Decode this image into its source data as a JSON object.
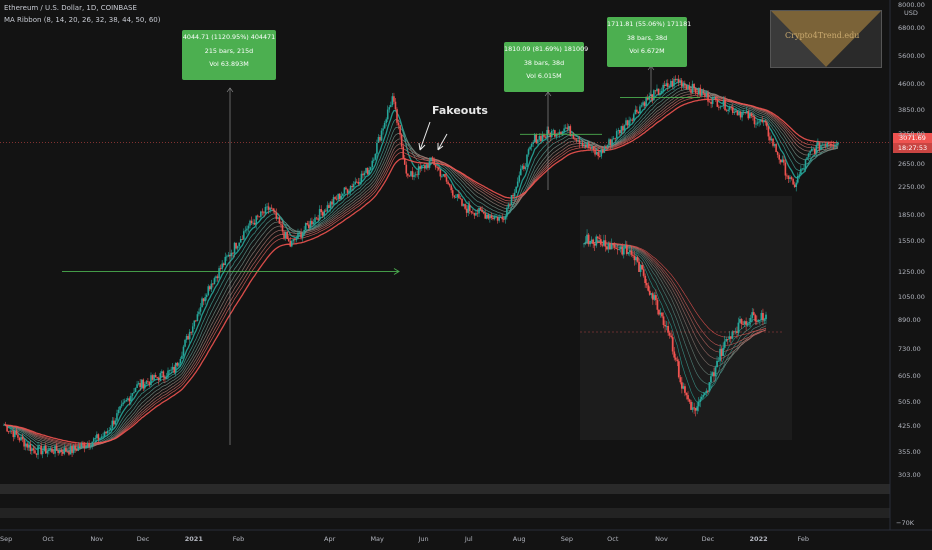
{
  "header": {
    "symbol_line": "Ethereum / U.S. Dollar, 1D, COINBASE",
    "indicator_line": "MA Ribbon (8, 14, 20, 26, 32, 38, 44, 50, 60)"
  },
  "currency": "USD",
  "logo": {
    "text": "Crypto4Trend.edu"
  },
  "annotation": {
    "fakeouts": "Fakeouts"
  },
  "measure_boxes": [
    {
      "line1": "4044.71 (1120.95%) 404471",
      "line2": "215 bars, 215d",
      "line3": "Vol 63.893M"
    },
    {
      "line1": "1810.09 (81.69%) 181009",
      "line2": "38 bars, 38d",
      "line3": "Vol 6.015M"
    },
    {
      "line1": "1711.81 (55.06%) 171181",
      "line2": "38 bars, 38d",
      "line3": "Vol 6.672M"
    }
  ],
  "current_price": {
    "value": "3071.69",
    "countdown": "18:27:53"
  },
  "colors": {
    "background": "#131313",
    "up": "#26a69a",
    "down": "#ef5350",
    "ribbon_fast": "#26a69a",
    "ribbon_slow": "#ef5350",
    "measure_box": "#4caf50",
    "price_line": "#ef5350"
  },
  "chart_data": {
    "type": "line",
    "series_kind": "candlestick with MA ribbon",
    "y_scale": "log",
    "y_ticks": [
      "8000.00",
      "6800.00",
      "5600.00",
      "4600.00",
      "3850.00",
      "3250.00",
      "2650.00",
      "2250.00",
      "1850.00",
      "1550.00",
      "1250.00",
      "1050.00",
      "890.00",
      "730.00",
      "605.00",
      "505.00",
      "425.00",
      "355.00",
      "303.00"
    ],
    "x_ticks": [
      "Sep",
      "Oct",
      "Nov",
      "Dec",
      "2021",
      "Feb",
      "Apr",
      "May",
      "Jun",
      "Jul",
      "Aug",
      "Sep",
      "Oct",
      "Nov",
      "Dec",
      "2022",
      "Feb"
    ],
    "volume_axis_label": "−70K",
    "price_path": [
      {
        "date": "2020-09-01",
        "price": 430
      },
      {
        "date": "2020-09-20",
        "price": 360
      },
      {
        "date": "2020-10-15",
        "price": 360
      },
      {
        "date": "2020-11-05",
        "price": 400
      },
      {
        "date": "2020-11-25",
        "price": 560
      },
      {
        "date": "2020-12-20",
        "price": 630
      },
      {
        "date": "2021-01-10",
        "price": 1100
      },
      {
        "date": "2021-01-20",
        "price": 1300
      },
      {
        "date": "2021-02-05",
        "price": 1700
      },
      {
        "date": "2021-02-20",
        "price": 1950
      },
      {
        "date": "2021-03-05",
        "price": 1500
      },
      {
        "date": "2021-03-20",
        "price": 1800
      },
      {
        "date": "2021-04-05",
        "price": 2100
      },
      {
        "date": "2021-04-25",
        "price": 2550
      },
      {
        "date": "2021-05-10",
        "price": 4200
      },
      {
        "date": "2021-05-20",
        "price": 2400
      },
      {
        "date": "2021-06-05",
        "price": 2700
      },
      {
        "date": "2021-06-25",
        "price": 1950
      },
      {
        "date": "2021-07-20",
        "price": 1800
      },
      {
        "date": "2021-08-10",
        "price": 3150
      },
      {
        "date": "2021-08-30",
        "price": 3400
      },
      {
        "date": "2021-09-20",
        "price": 2800
      },
      {
        "date": "2021-10-20",
        "price": 4100
      },
      {
        "date": "2021-11-10",
        "price": 4750
      },
      {
        "date": "2021-11-30",
        "price": 4200
      },
      {
        "date": "2021-12-20",
        "price": 3800
      },
      {
        "date": "2022-01-05",
        "price": 3500
      },
      {
        "date": "2022-01-24",
        "price": 2250
      },
      {
        "date": "2022-02-05",
        "price": 2900
      },
      {
        "date": "2022-02-15",
        "price": 3100
      },
      {
        "date": "2022-02-22",
        "price": 3071.69
      }
    ],
    "inset": {
      "description": "earlier cycle comparison overlay",
      "price_path": [
        1400,
        1380,
        1340,
        1300,
        1250,
        1050,
        880,
        730,
        505,
        425,
        480,
        620,
        730,
        790,
        820,
        820
      ]
    },
    "measure_levels": {
      "horizontal_line_1": 1250,
      "horizontal_line_2": 3250,
      "horizontal_line_3": 4200
    }
  }
}
